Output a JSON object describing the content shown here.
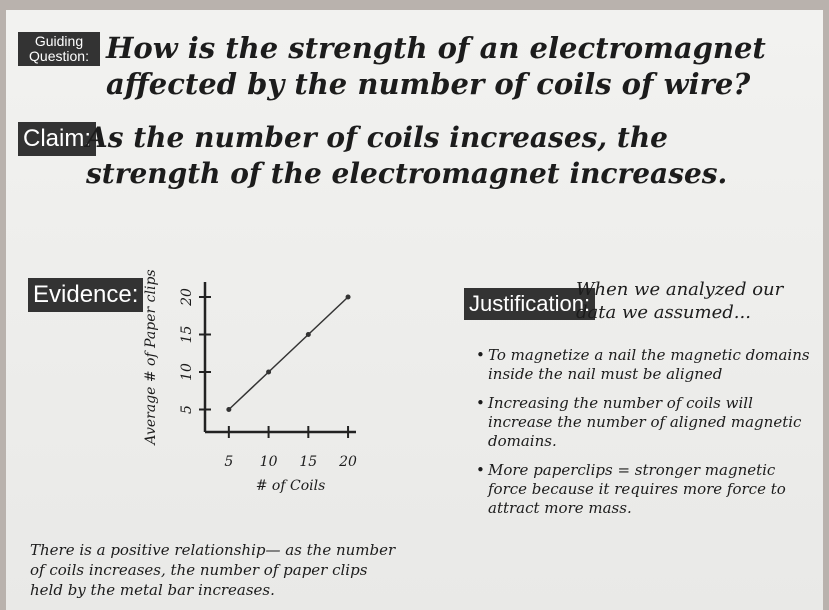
{
  "header": {
    "label": "Guiding Question:",
    "question": "How is the strength of an electromagnet affected by the number of coils of wire?"
  },
  "claim": {
    "label": "Claim:",
    "text": "As the number of coils increases, the strength of the electromagnet increases."
  },
  "evidence": {
    "label": "Evidence:",
    "chart": {
      "type": "line",
      "x_label": "# of Coils",
      "y_label": "Average # of Paper clips",
      "x": [
        5,
        10,
        15,
        20
      ],
      "values": [
        5,
        10,
        15,
        20
      ],
      "xlim": [
        2,
        21
      ],
      "ylim": [
        2,
        22
      ],
      "xticks": [
        5,
        10,
        15,
        20
      ],
      "yticks": [
        5,
        10,
        15,
        20
      ]
    },
    "text": "There is a positive relationship— as the number of coils increases, the number of paper clips held by the metal bar increases."
  },
  "justification": {
    "label": "Justification:",
    "intro": "When we analyzed our data we assumed...",
    "bullets": [
      "To magnetize a nail the magnetic domains inside the nail must be aligned",
      "Increasing the number of coils will increase the number of aligned magnetic domains.",
      "More paperclips = stronger magnetic force because it requires more force to attract more mass."
    ]
  }
}
